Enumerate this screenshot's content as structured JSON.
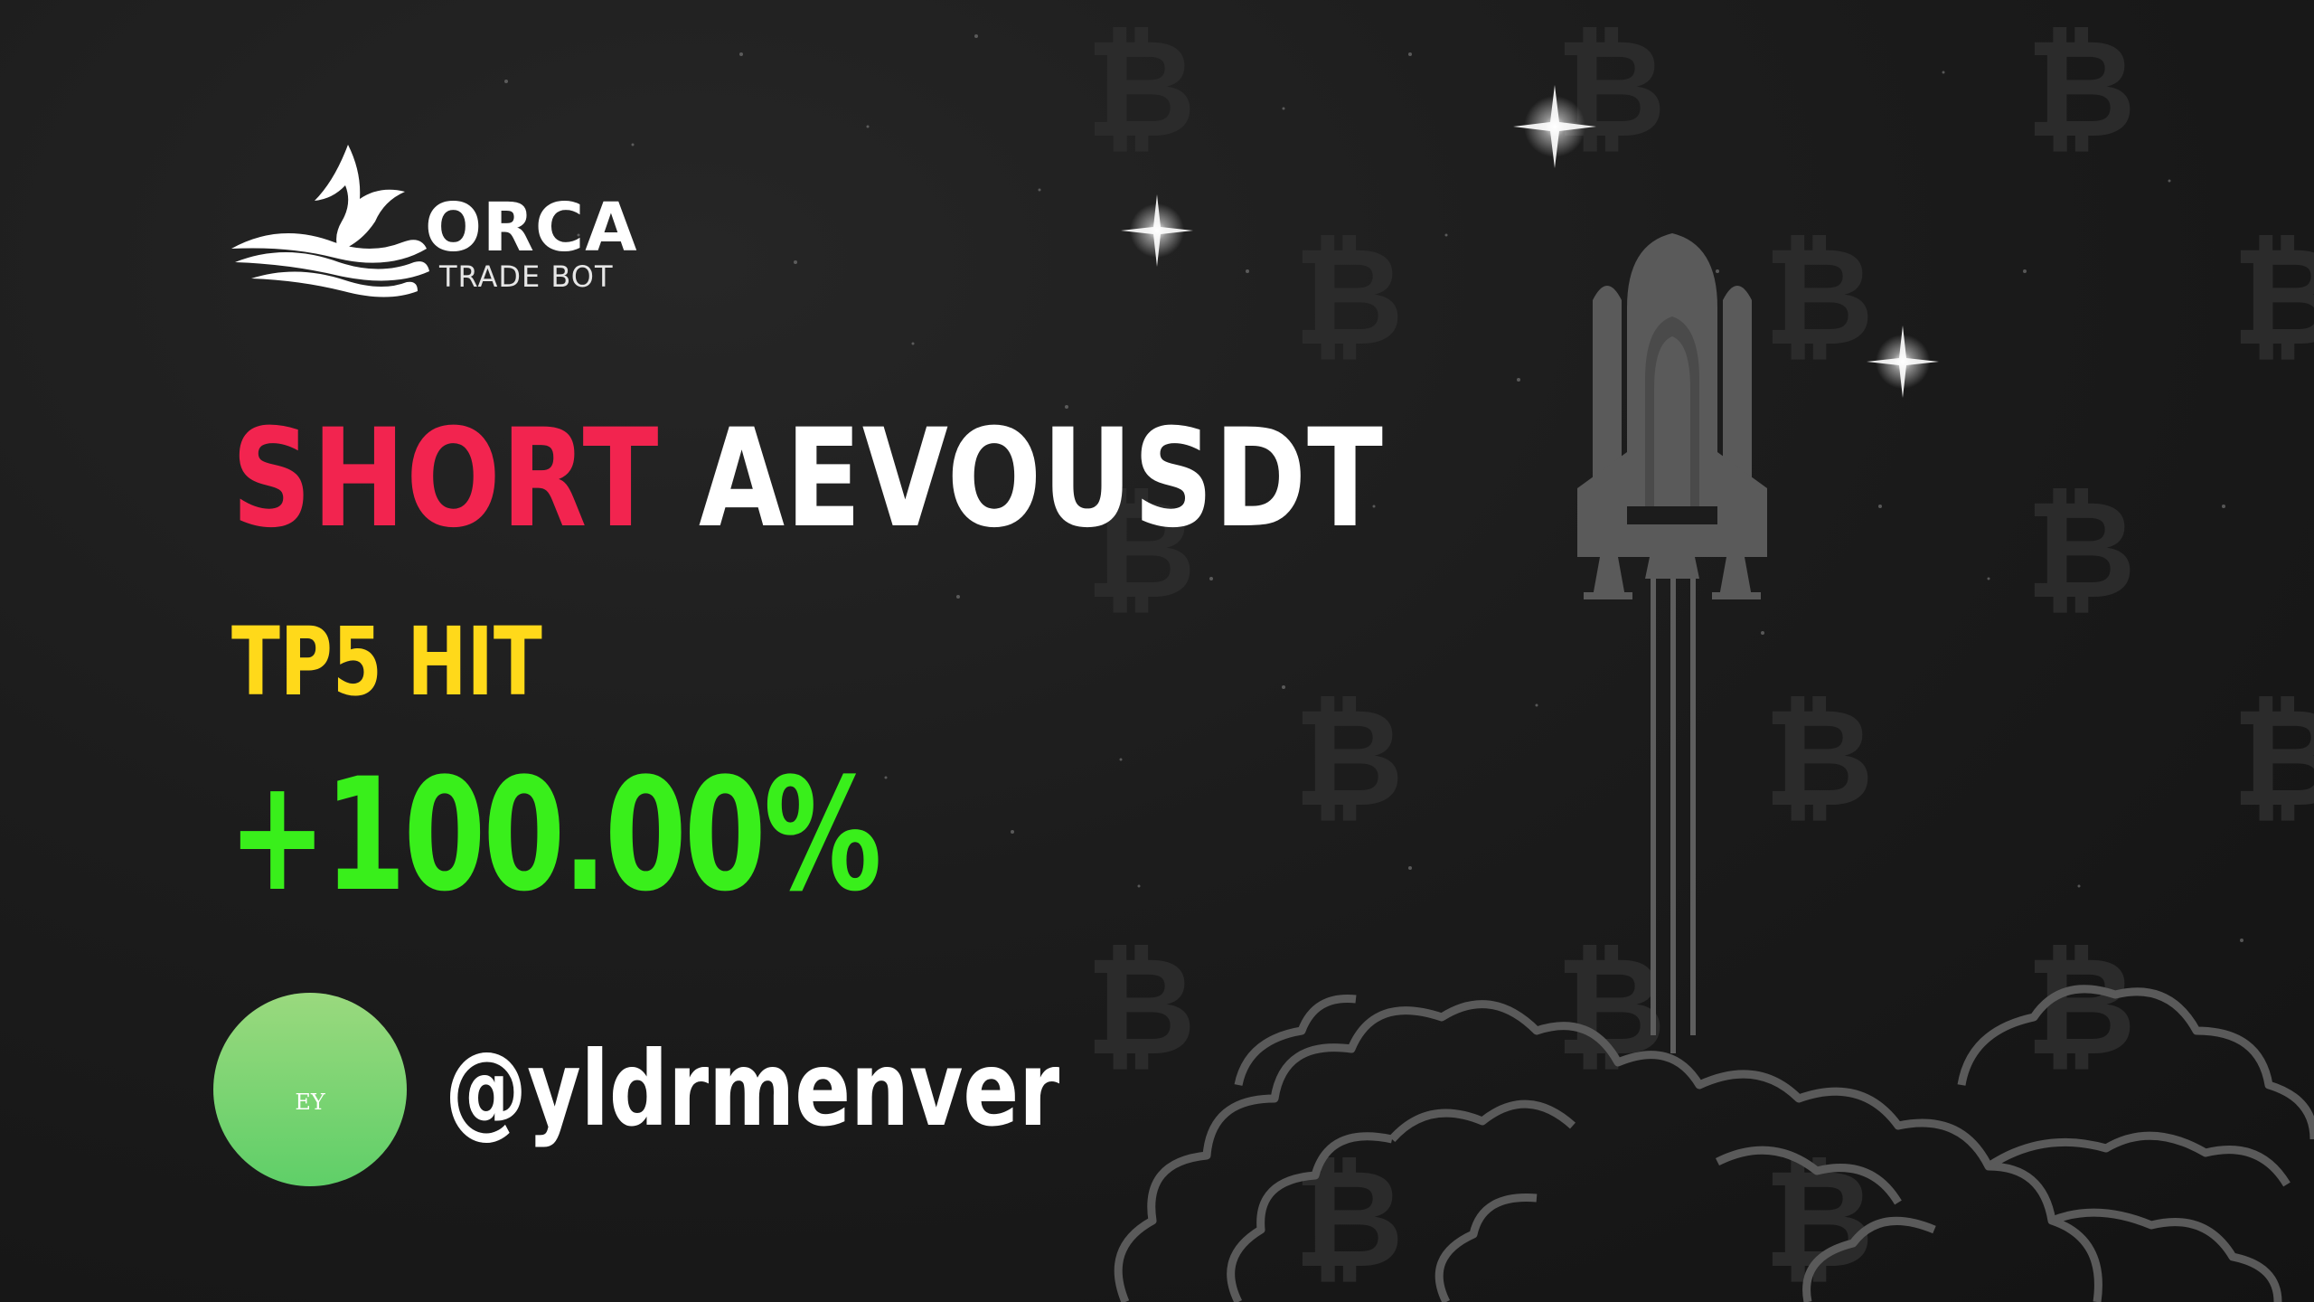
{
  "brand": {
    "name": "ORCA",
    "subtitle": "TRADE BOT",
    "logo_icon": "whale-tail-icon"
  },
  "signal": {
    "side": "SHORT",
    "pair": "AEVOUSDT",
    "status": "TP5 HIT",
    "profit": "+100.00%"
  },
  "user": {
    "initials": "EY",
    "handle": "@yldrmenver"
  },
  "background": {
    "pattern_icon": "bitcoin-icon",
    "illustration": "rocket-launch-icon",
    "sparkle_icon": "star-sparkle-icon"
  },
  "colors": {
    "side": "#f2244f",
    "pair": "#ffffff",
    "status": "#ffd91a",
    "profit": "#39ef1b",
    "avatar": "#7fd671",
    "background": "#1c1c1c"
  }
}
